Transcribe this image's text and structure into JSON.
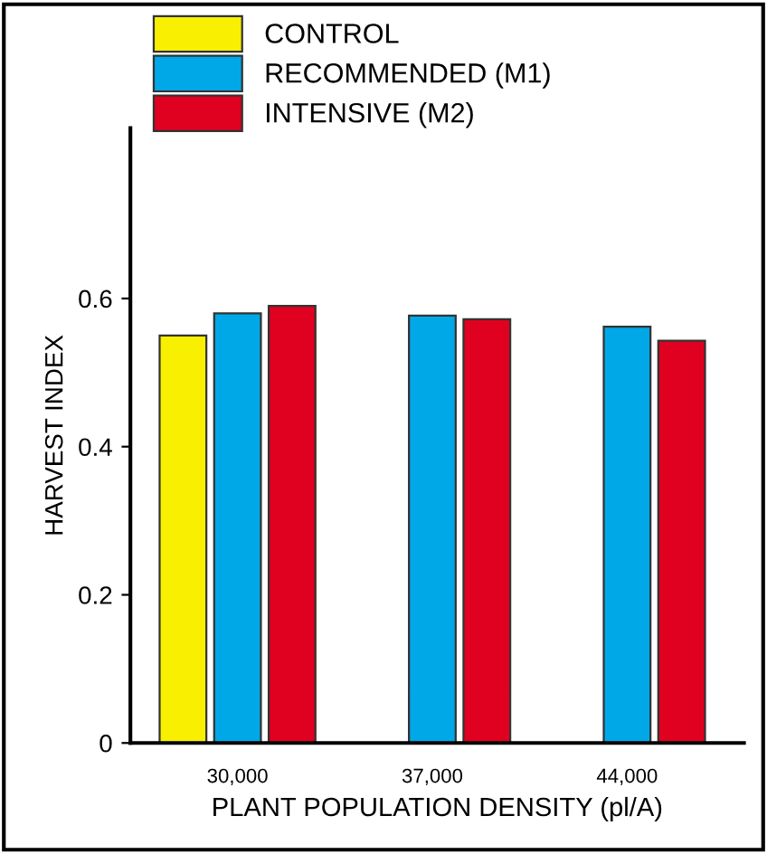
{
  "chart_data": {
    "type": "bar",
    "xlabel": "PLANT POPULATION DENSITY (pl/A)",
    "ylabel": "HARVEST INDEX",
    "categories": [
      "30,000",
      "37,000",
      "44,000"
    ],
    "series": [
      {
        "name": "CONTROL",
        "color": "#f8f000",
        "values": [
          0.55,
          null,
          null
        ]
      },
      {
        "name": "RECOMMENDED (M1)",
        "color": "#00a8e8",
        "values": [
          0.58,
          0.577,
          0.562
        ]
      },
      {
        "name": "INTENSIVE (M2)",
        "color": "#e00020",
        "values": [
          0.59,
          0.572,
          0.543
        ]
      }
    ],
    "ylim": [
      0,
      0.83
    ],
    "yticks": [
      0,
      0.2,
      0.4,
      0.6
    ],
    "legend": "top left",
    "grid": false
  }
}
